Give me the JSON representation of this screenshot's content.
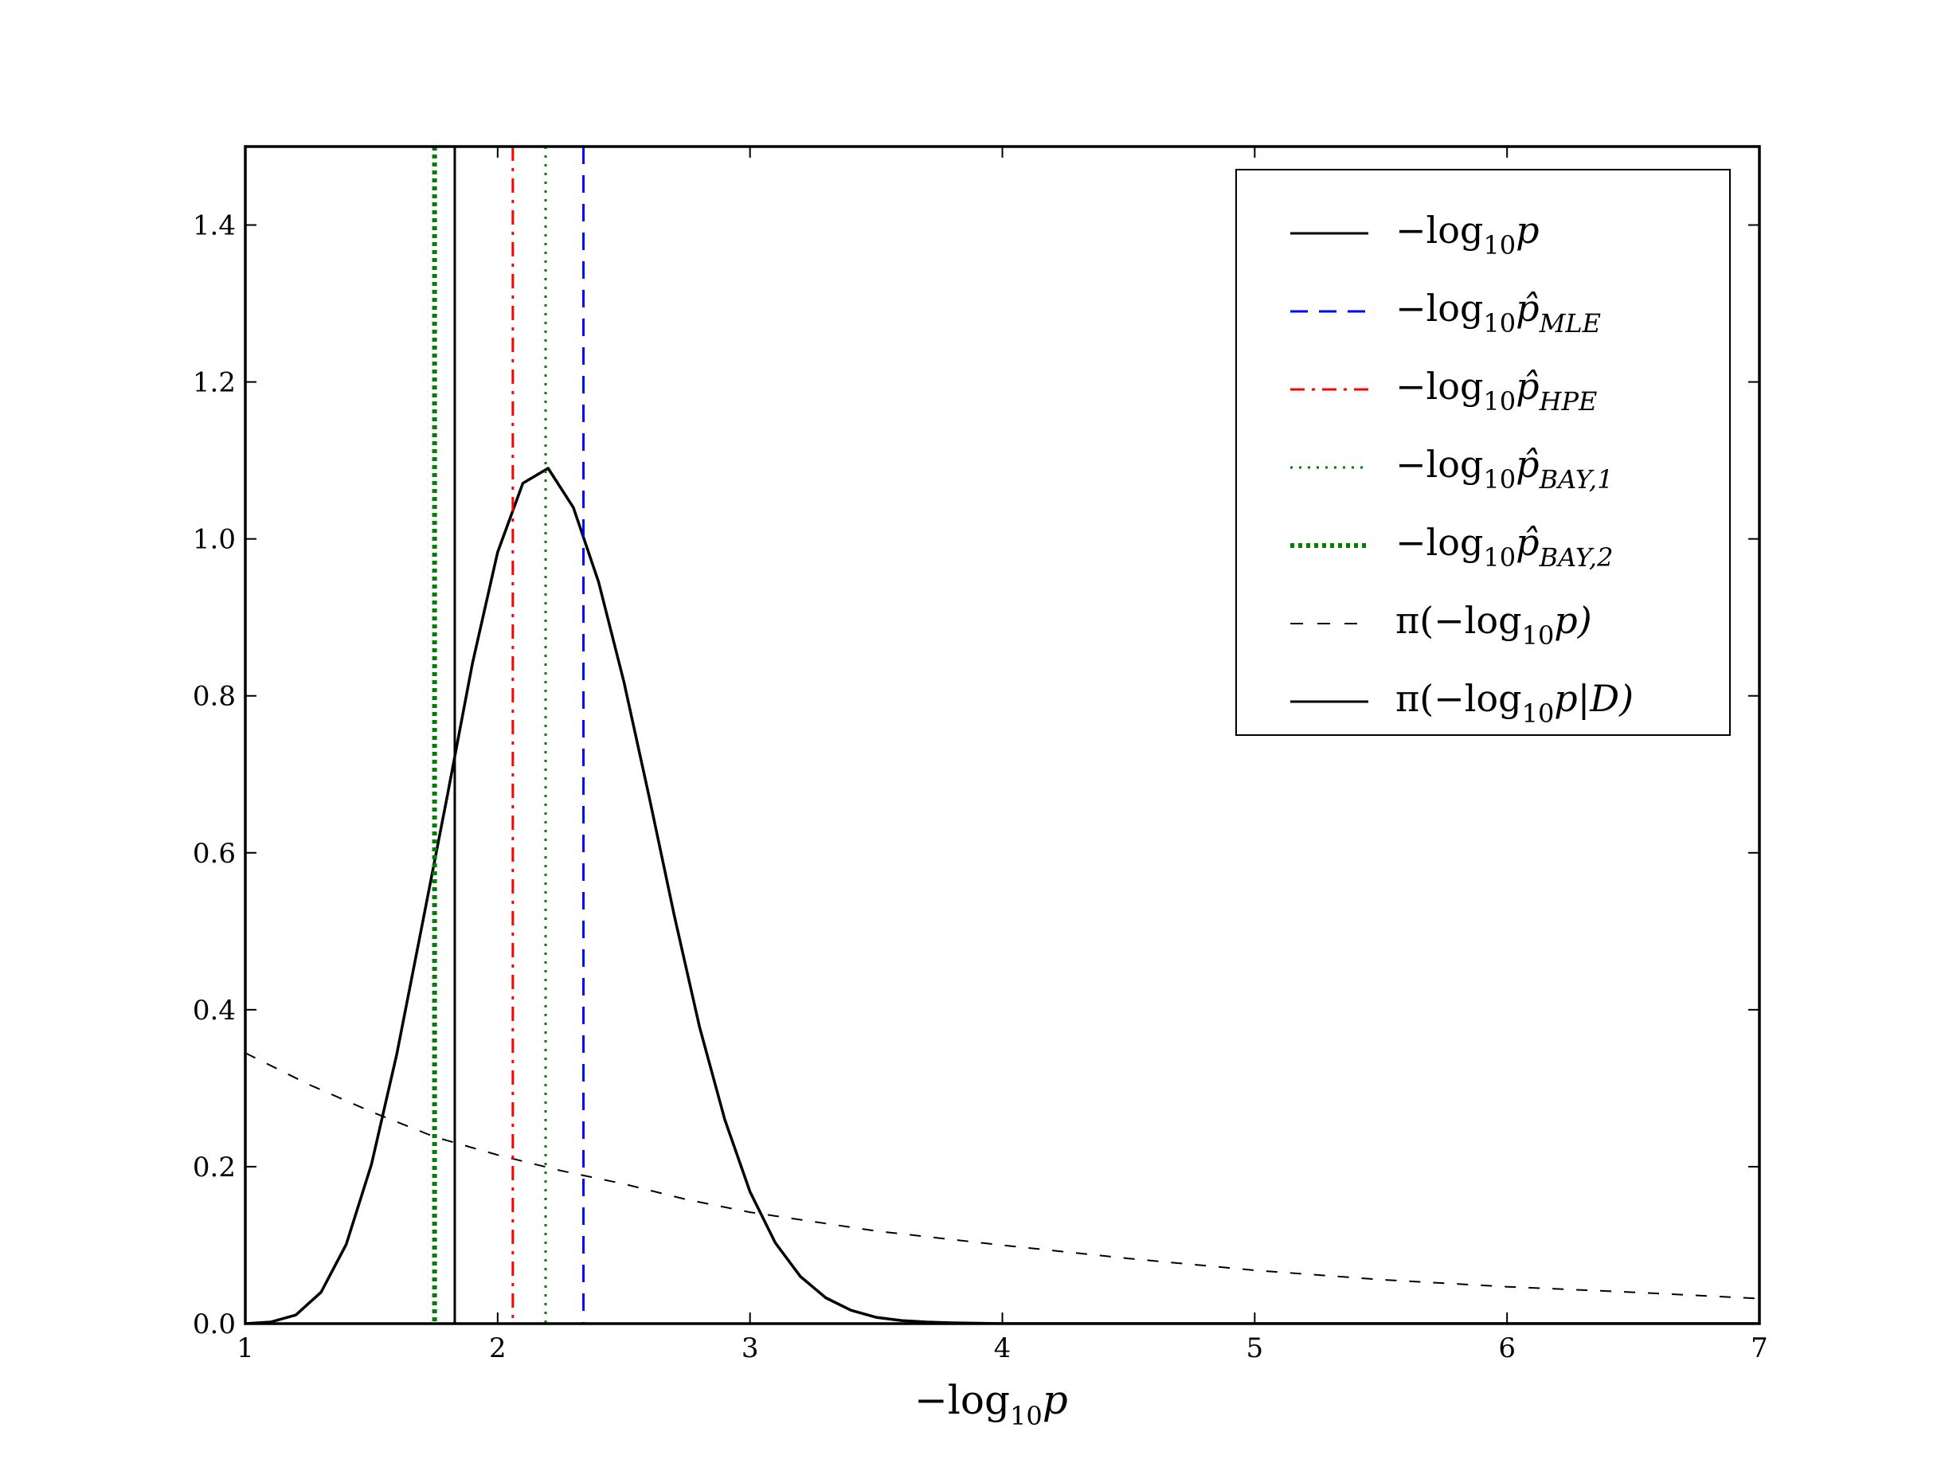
{
  "chart_data": {
    "type": "line",
    "xlabel": {
      "main": "−log",
      "sub": "10",
      "tail": "p"
    },
    "xlim": [
      1,
      7
    ],
    "ylim": [
      0,
      1.5
    ],
    "x_ticks": [
      1,
      2,
      3,
      4,
      5,
      6,
      7
    ],
    "y_ticks": [
      0.0,
      0.2,
      0.4,
      0.6,
      0.8,
      1.0,
      1.2,
      1.4
    ],
    "x_tick_labels": [
      "1",
      "2",
      "3",
      "4",
      "5",
      "6",
      "7"
    ],
    "y_tick_labels": [
      "0.0",
      "0.2",
      "0.4",
      "0.6",
      "0.8",
      "1.0",
      "1.2",
      "1.4"
    ],
    "grid": false,
    "legend_position": "top-right",
    "vertical_lines": [
      {
        "name": "−log10 p",
        "x": 1.83,
        "color": "#000000",
        "style": "solid",
        "width": 3
      },
      {
        "name": "−log10 p̂ MLE",
        "x": 2.34,
        "color": "#0000ff",
        "style": "dashed",
        "width": 3
      },
      {
        "name": "−log10 p̂ HPE",
        "x": 2.06,
        "color": "#ff0000",
        "style": "dashdot",
        "width": 3
      },
      {
        "name": "−log10 p̂ BAY,1",
        "x": 2.19,
        "color": "#008000",
        "style": "dotted",
        "width": 3
      },
      {
        "name": "−log10 p̂ BAY,2",
        "x": 1.75,
        "color": "#008000",
        "style": "dotted",
        "width": 6
      }
    ],
    "series": [
      {
        "name": "π(−log10 p)",
        "kind": "prior",
        "color": "#000000",
        "style": "dashed",
        "x": [
          1.0,
          1.25,
          1.5,
          1.75,
          2.0,
          2.25,
          2.5,
          2.75,
          3.0,
          3.5,
          4.0,
          4.5,
          5.0,
          5.5,
          6.0,
          6.5,
          7.0
        ],
        "values": [
          0.345,
          0.305,
          0.27,
          0.238,
          0.215,
          0.195,
          0.178,
          0.158,
          0.142,
          0.118,
          0.1,
          0.083,
          0.068,
          0.056,
          0.047,
          0.04,
          0.032
        ]
      },
      {
        "name": "π(−log10 p|D)",
        "kind": "posterior",
        "color": "#000000",
        "style": "solid",
        "x": [
          1.0,
          1.1,
          1.2,
          1.3,
          1.4,
          1.5,
          1.6,
          1.7,
          1.8,
          1.9,
          2.0,
          2.1,
          2.2,
          2.3,
          2.4,
          2.5,
          2.6,
          2.7,
          2.8,
          2.9,
          3.0,
          3.1,
          3.2,
          3.3,
          3.4,
          3.5,
          3.6,
          3.7,
          3.8,
          4.0,
          4.5,
          5.0,
          6.0,
          7.0
        ],
        "values": [
          0.0,
          0.002,
          0.011,
          0.04,
          0.101,
          0.203,
          0.343,
          0.507,
          0.672,
          0.841,
          0.983,
          1.071,
          1.09,
          1.04,
          0.945,
          0.818,
          0.672,
          0.52,
          0.378,
          0.26,
          0.168,
          0.103,
          0.06,
          0.033,
          0.017,
          0.008,
          0.004,
          0.002,
          0.001,
          0.0,
          0.0,
          0.0,
          0.0,
          0.0
        ]
      }
    ],
    "legend": [
      {
        "pre": "−log",
        "sub1": "10",
        "mid": "p",
        "sub2": "",
        "post": "",
        "color": "#000000",
        "style": "solid",
        "width": 3
      },
      {
        "pre": "−log",
        "sub1": "10",
        "mid": "p̂",
        "sub2": "MLE",
        "post": "",
        "color": "#0000ff",
        "style": "dashed",
        "width": 3
      },
      {
        "pre": "−log",
        "sub1": "10",
        "mid": "p̂",
        "sub2": "HPE",
        "post": "",
        "color": "#ff0000",
        "style": "dashdot",
        "width": 3
      },
      {
        "pre": "−log",
        "sub1": "10",
        "mid": "p̂",
        "sub2": "BAY,1",
        "post": "",
        "color": "#008000",
        "style": "dotted",
        "width": 3
      },
      {
        "pre": "−log",
        "sub1": "10",
        "mid": "p̂",
        "sub2": "BAY,2",
        "post": "",
        "color": "#008000",
        "style": "dotted",
        "width": 6
      },
      {
        "pre": "π(−log",
        "sub1": "10",
        "mid": "p)",
        "sub2": "",
        "post": "",
        "color": "#000000",
        "style": "dashed-thin",
        "width": 2
      },
      {
        "pre": "π(−log",
        "sub1": "10",
        "mid": "p|D)",
        "sub2": "",
        "post": "",
        "color": "#000000",
        "style": "solid",
        "width": 3
      }
    ]
  }
}
